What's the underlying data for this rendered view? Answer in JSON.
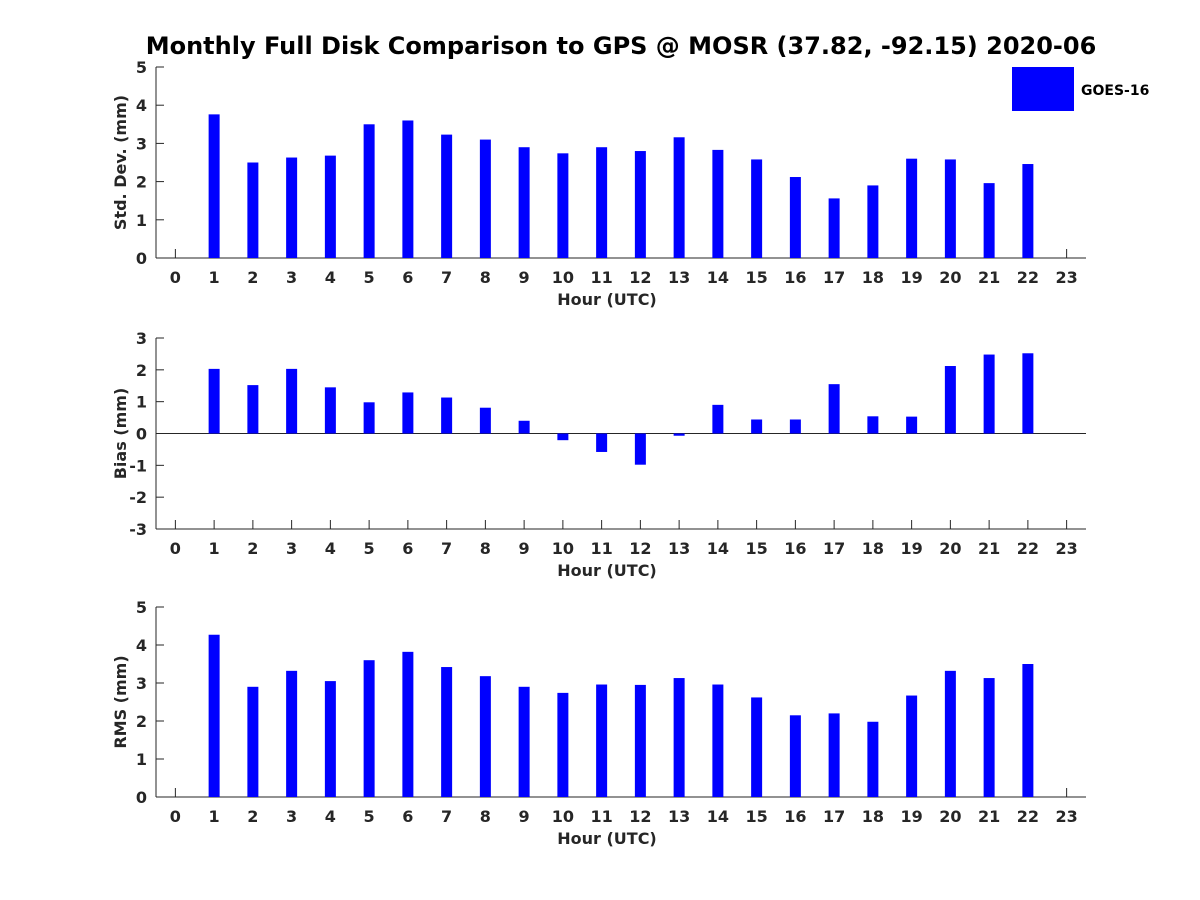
{
  "title": "Monthly Full Disk Comparison to GPS @ MOSR (37.82, -92.15) 2020-06",
  "legend": {
    "label": "GOES-16",
    "color": "#0000ff"
  },
  "chart_data": [
    {
      "type": "bar",
      "name": "std-dev",
      "title": "",
      "xlabel": "Hour (UTC)",
      "ylabel": "Std. Dev. (mm)",
      "ylim": [
        0,
        5
      ],
      "yticks": [
        0,
        1,
        2,
        3,
        4,
        5
      ],
      "xlim": [
        -0.5,
        23.5
      ],
      "categories": [
        "0",
        "1",
        "2",
        "3",
        "4",
        "5",
        "6",
        "7",
        "8",
        "9",
        "10",
        "11",
        "12",
        "13",
        "14",
        "15",
        "16",
        "17",
        "18",
        "19",
        "20",
        "21",
        "22",
        "23"
      ],
      "series": [
        {
          "name": "GOES-16",
          "color": "#0000ff",
          "values": [
            null,
            3.76,
            2.5,
            2.63,
            2.68,
            3.5,
            3.6,
            3.23,
            3.1,
            2.9,
            2.74,
            2.9,
            2.8,
            3.16,
            2.83,
            2.58,
            2.12,
            1.56,
            1.9,
            2.6,
            2.58,
            1.96,
            2.46,
            null
          ]
        }
      ]
    },
    {
      "type": "bar",
      "name": "bias",
      "title": "",
      "xlabel": "Hour (UTC)",
      "ylabel": "Bias (mm)",
      "ylim": [
        -3,
        3
      ],
      "yticks": [
        -3,
        -2,
        -1,
        0,
        1,
        2,
        3
      ],
      "xlim": [
        -0.5,
        23.5
      ],
      "zero_line": true,
      "categories": [
        "0",
        "1",
        "2",
        "3",
        "4",
        "5",
        "6",
        "7",
        "8",
        "9",
        "10",
        "11",
        "12",
        "13",
        "14",
        "15",
        "16",
        "17",
        "18",
        "19",
        "20",
        "21",
        "22",
        "23"
      ],
      "series": [
        {
          "name": "GOES-16",
          "color": "#0000ff",
          "values": [
            null,
            2.03,
            1.52,
            2.03,
            1.45,
            0.98,
            1.29,
            1.13,
            0.81,
            0.4,
            -0.21,
            -0.58,
            -0.98,
            -0.07,
            0.9,
            0.44,
            0.44,
            1.55,
            0.54,
            0.53,
            2.12,
            2.48,
            2.52,
            null
          ]
        }
      ]
    },
    {
      "type": "bar",
      "name": "rms",
      "title": "",
      "xlabel": "Hour (UTC)",
      "ylabel": "RMS (mm)",
      "ylim": [
        0,
        5
      ],
      "yticks": [
        0,
        1,
        2,
        3,
        4,
        5
      ],
      "xlim": [
        -0.5,
        23.5
      ],
      "categories": [
        "0",
        "1",
        "2",
        "3",
        "4",
        "5",
        "6",
        "7",
        "8",
        "9",
        "10",
        "11",
        "12",
        "13",
        "14",
        "15",
        "16",
        "17",
        "18",
        "19",
        "20",
        "21",
        "22",
        "23"
      ],
      "series": [
        {
          "name": "GOES-16",
          "color": "#0000ff",
          "values": [
            null,
            4.27,
            2.9,
            3.32,
            3.05,
            3.6,
            3.82,
            3.42,
            3.18,
            2.9,
            2.74,
            2.96,
            2.95,
            3.13,
            2.96,
            2.62,
            2.15,
            2.2,
            1.98,
            2.67,
            3.32,
            3.13,
            3.5,
            null
          ]
        }
      ]
    }
  ]
}
